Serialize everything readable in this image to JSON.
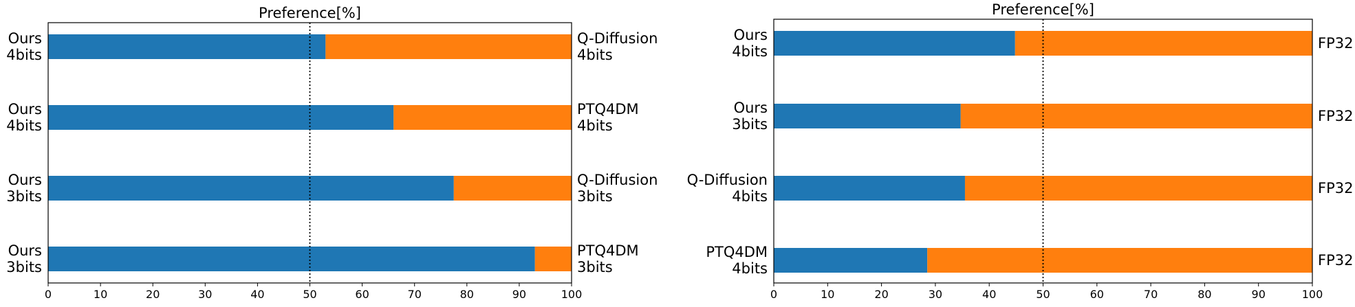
{
  "chart_data": [
    {
      "type": "bar",
      "orientation": "horizontal",
      "stacked": true,
      "title": "Preference[%]",
      "xlim": [
        0,
        100
      ],
      "x_ticks": [
        0,
        10,
        20,
        30,
        40,
        50,
        60,
        70,
        80,
        90,
        100
      ],
      "reference_line": 50,
      "colors": {
        "left": "#1f77b4",
        "right": "#ff7f0e"
      },
      "rows": [
        {
          "left_label": [
            "Ours",
            "4bits"
          ],
          "right_label": [
            "Q-Diffusion",
            "4bits"
          ],
          "value": 53
        },
        {
          "left_label": [
            "Ours",
            "4bits"
          ],
          "right_label": [
            "PTQ4DM",
            "4bits"
          ],
          "value": 66
        },
        {
          "left_label": [
            "Ours",
            "3bits"
          ],
          "right_label": [
            "Q-Diffusion",
            "3bits"
          ],
          "value": 77.5
        },
        {
          "left_label": [
            "Ours",
            "3bits"
          ],
          "right_label": [
            "PTQ4DM",
            "3bits"
          ],
          "value": 93
        }
      ]
    },
    {
      "type": "bar",
      "orientation": "horizontal",
      "stacked": true,
      "title": "Preference[%]",
      "xlim": [
        0,
        100
      ],
      "x_ticks": [
        0,
        10,
        20,
        30,
        40,
        50,
        60,
        70,
        80,
        90,
        100
      ],
      "reference_line": 50,
      "colors": {
        "left": "#1f77b4",
        "right": "#ff7f0e"
      },
      "rows": [
        {
          "left_label": [
            "Ours",
            "4bits"
          ],
          "right_label": [
            "FP32"
          ],
          "value": 44.8
        },
        {
          "left_label": [
            "Ours",
            "3bits"
          ],
          "right_label": [
            "FP32"
          ],
          "value": 34.7
        },
        {
          "left_label": [
            "Q-Diffusion",
            "4bits"
          ],
          "right_label": [
            "FP32"
          ],
          "value": 35.5
        },
        {
          "left_label": [
            "PTQ4DM",
            "4bits"
          ],
          "right_label": [
            "FP32"
          ],
          "value": 28.5
        }
      ]
    }
  ]
}
